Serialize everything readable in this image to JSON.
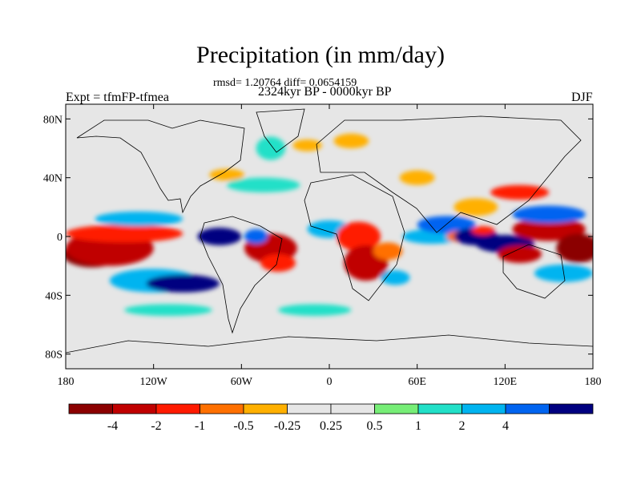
{
  "title": "Precipitation (in mm/day)",
  "stats": "rmsd= 1.20764 diff= 0.0654159",
  "period": "2324kyr BP - 0000kyr BP",
  "experiment": "Expt = tfmFP-tfmea",
  "season": "DJF",
  "map": {
    "lon_range": [
      -180,
      180
    ],
    "lat_range": [
      -90,
      90
    ],
    "land_color": "#e6e6e6",
    "y_ticks": [
      {
        "label": "80N",
        "lat": 80
      },
      {
        "label": "40N",
        "lat": 40
      },
      {
        "label": "0",
        "lat": 0
      },
      {
        "label": "40S",
        "lat": -40
      },
      {
        "label": "80S",
        "lat": -80
      }
    ],
    "x_ticks": [
      {
        "label": "180",
        "lon": -180
      },
      {
        "label": "120W",
        "lon": -120
      },
      {
        "label": "60W",
        "lon": -60
      },
      {
        "label": "0",
        "lon": 0
      },
      {
        "label": "60E",
        "lon": 60
      },
      {
        "label": "120E",
        "lon": 120
      },
      {
        "label": "180",
        "lon": 180
      }
    ],
    "anomalies": [
      {
        "lon": -162,
        "lat": -12,
        "rx": 20,
        "ry": 9,
        "level": 0
      },
      {
        "lon": -150,
        "lat": -8,
        "rx": 30,
        "ry": 12,
        "level": 1
      },
      {
        "lon": -140,
        "lat": 2,
        "rx": 40,
        "ry": 6,
        "level": 2
      },
      {
        "lon": -130,
        "lat": 12,
        "rx": 30,
        "ry": 5,
        "level": 9
      },
      {
        "lon": -120,
        "lat": -30,
        "rx": 30,
        "ry": 8,
        "level": 9
      },
      {
        "lon": -100,
        "lat": -32,
        "rx": 25,
        "ry": 6,
        "level": 11
      },
      {
        "lon": -75,
        "lat": 0,
        "rx": 15,
        "ry": 6,
        "level": 11
      },
      {
        "lon": -40,
        "lat": -8,
        "rx": 18,
        "ry": 10,
        "level": 1
      },
      {
        "lon": -50,
        "lat": 0,
        "rx": 8,
        "ry": 5,
        "level": 10
      },
      {
        "lon": -35,
        "lat": -18,
        "rx": 12,
        "ry": 6,
        "level": 2
      },
      {
        "lon": -45,
        "lat": 35,
        "rx": 25,
        "ry": 5,
        "level": 8
      },
      {
        "lon": -70,
        "lat": 42,
        "rx": 12,
        "ry": 4,
        "level": 4
      },
      {
        "lon": -40,
        "lat": 60,
        "rx": 10,
        "ry": 8,
        "level": 8
      },
      {
        "lon": -15,
        "lat": 62,
        "rx": 10,
        "ry": 4,
        "level": 4
      },
      {
        "lon": 15,
        "lat": 65,
        "rx": 12,
        "ry": 5,
        "level": 4
      },
      {
        "lon": 0,
        "lat": 5,
        "rx": 15,
        "ry": 6,
        "level": 9
      },
      {
        "lon": 20,
        "lat": 0,
        "rx": 15,
        "ry": 10,
        "level": 2
      },
      {
        "lon": 25,
        "lat": -18,
        "rx": 15,
        "ry": 12,
        "level": 1
      },
      {
        "lon": 40,
        "lat": -10,
        "rx": 10,
        "ry": 6,
        "level": 3
      },
      {
        "lon": 45,
        "lat": -28,
        "rx": 10,
        "ry": 5,
        "level": 9
      },
      {
        "lon": 70,
        "lat": 0,
        "rx": 20,
        "ry": 5,
        "level": 9
      },
      {
        "lon": 80,
        "lat": 8,
        "rx": 20,
        "ry": 6,
        "level": 10
      },
      {
        "lon": 90,
        "lat": 0,
        "rx": 10,
        "ry": 4,
        "level": 3
      },
      {
        "lon": 100,
        "lat": 0,
        "rx": 15,
        "ry": 6,
        "level": 11
      },
      {
        "lon": 105,
        "lat": 4,
        "rx": 8,
        "ry": 3,
        "level": 2
      },
      {
        "lon": 120,
        "lat": -5,
        "rx": 20,
        "ry": 6,
        "level": 11
      },
      {
        "lon": 130,
        "lat": -12,
        "rx": 15,
        "ry": 6,
        "level": 1
      },
      {
        "lon": 130,
        "lat": 30,
        "rx": 20,
        "ry": 5,
        "level": 2
      },
      {
        "lon": 150,
        "lat": 5,
        "rx": 25,
        "ry": 8,
        "level": 1
      },
      {
        "lon": 170,
        "lat": -8,
        "rx": 15,
        "ry": 10,
        "level": 0
      },
      {
        "lon": 160,
        "lat": -25,
        "rx": 20,
        "ry": 6,
        "level": 9
      },
      {
        "lon": 150,
        "lat": 15,
        "rx": 25,
        "ry": 6,
        "level": 10
      },
      {
        "lon": 100,
        "lat": 20,
        "rx": 15,
        "ry": 6,
        "level": 4
      },
      {
        "lon": 60,
        "lat": 40,
        "rx": 12,
        "ry": 5,
        "level": 4
      },
      {
        "lon": -10,
        "lat": -50,
        "rx": 25,
        "ry": 4,
        "level": 8
      },
      {
        "lon": -110,
        "lat": -50,
        "rx": 30,
        "ry": 4,
        "level": 8
      }
    ]
  },
  "colorbar": {
    "colors": [
      "#8b0000",
      "#c00000",
      "#ff1a00",
      "#ff7000",
      "#ffb000",
      "#e6e6e6",
      "#e6e6e6",
      "#77ee77",
      "#22e0c8",
      "#00b4f0",
      "#0064f0",
      "#000080"
    ],
    "labels": [
      "-4",
      "-2",
      "-1",
      "-0.5",
      "-0.25",
      "0.25",
      "0.5",
      "1",
      "2",
      "4"
    ]
  }
}
